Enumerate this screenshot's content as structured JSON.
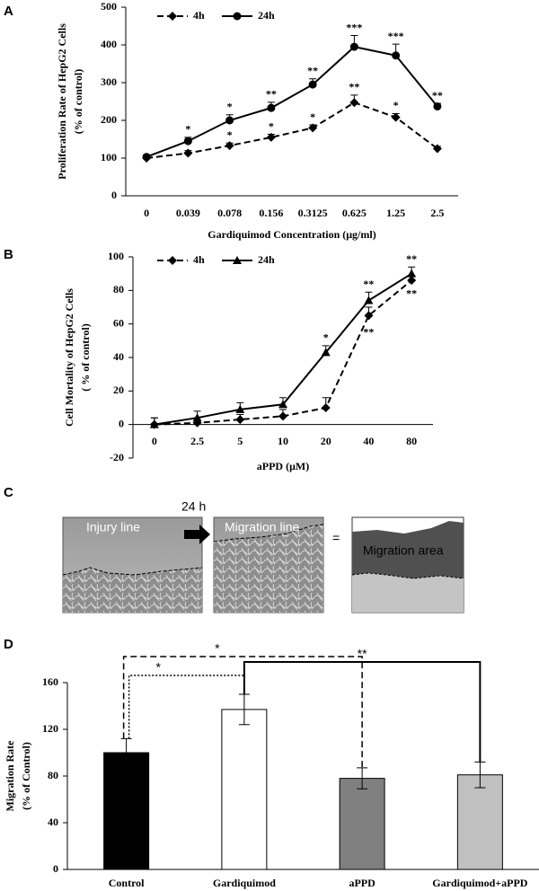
{
  "chart_data": [
    {
      "type": "line",
      "panel": "A",
      "ylabel": [
        "Proliferation Rate of HepG2 Cells",
        "(% of control)"
      ],
      "xlabel": "Gardiquimod Concentration (μg/ml)",
      "categories": [
        "0",
        "0.039",
        "0.078",
        "0.156",
        "0.3125",
        "0.625",
        "1.25",
        "2.5"
      ],
      "ylim": [
        0,
        500
      ],
      "yticks": [
        0,
        100,
        200,
        300,
        400,
        500
      ],
      "series": [
        {
          "name": "4h",
          "color": "#000000",
          "style": "dashed",
          "marker": "diamond",
          "values": [
            100,
            113,
            133,
            155,
            180,
            247,
            208,
            125
          ],
          "errors": [
            5,
            7,
            7,
            8,
            8,
            20,
            10,
            6
          ],
          "significance": [
            null,
            "*",
            "*",
            "*",
            "*",
            "**",
            "*",
            null
          ]
        },
        {
          "name": "24h",
          "color": "#000000",
          "style": "solid",
          "marker": "circle",
          "values": [
            103,
            145,
            200,
            233,
            295,
            395,
            372,
            237
          ],
          "errors": [
            5,
            10,
            15,
            15,
            15,
            30,
            30,
            8
          ],
          "significance": [
            null,
            "*",
            "*",
            "**",
            "**",
            "***",
            "***",
            "**"
          ]
        }
      ]
    },
    {
      "type": "line",
      "panel": "B",
      "ylabel": [
        "Cell Mortality of HepG2 Cells",
        "( % of control)"
      ],
      "xlabel": "aPPD (μM)",
      "categories": [
        "0",
        "2.5",
        "5",
        "10",
        "20",
        "40",
        "80"
      ],
      "ylim": [
        -20,
        100
      ],
      "yticks": [
        -20,
        0,
        20,
        40,
        60,
        80,
        100
      ],
      "series": [
        {
          "name": "4h",
          "color": "#000000",
          "style": "dashed",
          "marker": "diamond",
          "values": [
            0,
            1,
            3,
            5,
            10,
            65,
            86
          ],
          "errors": [
            4,
            3,
            3,
            4,
            6,
            5,
            3
          ],
          "significance": [
            null,
            null,
            null,
            null,
            null,
            "**",
            "**"
          ],
          "significance_position": "below"
        },
        {
          "name": "24h",
          "color": "#000000",
          "style": "solid",
          "marker": "triangle",
          "values": [
            0,
            4,
            9,
            12,
            43,
            74,
            90
          ],
          "errors": [
            4,
            4,
            4,
            4,
            4,
            5,
            4
          ],
          "significance": [
            null,
            null,
            null,
            null,
            "*",
            "**",
            "**"
          ],
          "significance_position": "above"
        }
      ]
    },
    {
      "type": "bar",
      "panel": "D",
      "ylabel": [
        "Migration Rate",
        "(% of Control)"
      ],
      "categories": [
        "Control",
        "Gardiquimod",
        "aPPD",
        "Gardiquimod+aPPD"
      ],
      "values": [
        100,
        137,
        78,
        81
      ],
      "errors": [
        12,
        13,
        9,
        11
      ],
      "colors": [
        "#000000",
        "#ffffff",
        "#808080",
        "#c0c0c0"
      ],
      "ylim": [
        0,
        160
      ],
      "yticks": [
        0,
        40,
        80,
        120,
        160
      ],
      "comparisons": [
        {
          "bars": [
            0,
            1
          ],
          "label": "*",
          "style": "dotted"
        },
        {
          "bars": [
            0,
            2
          ],
          "label": "*",
          "style": "dashed"
        },
        {
          "bars": [
            1,
            3
          ],
          "label": "**",
          "style": "solid"
        }
      ]
    }
  ],
  "panel_c": {
    "panel": "C",
    "before": "Injury line",
    "arrow": "24 h",
    "after": "Migration line",
    "equals": "=",
    "result": "Migration area"
  }
}
